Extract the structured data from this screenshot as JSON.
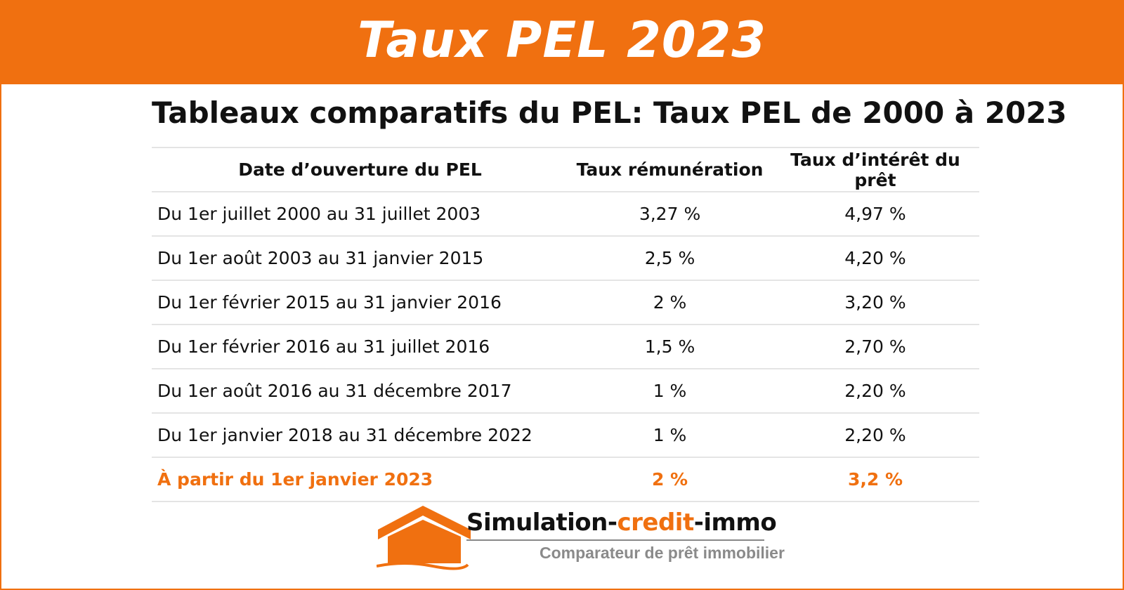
{
  "banner": {
    "title": "Taux PEL 2023"
  },
  "table": {
    "title": "Tableaux comparatifs du PEL: Taux PEL de 2000 à 2023",
    "headers": [
      "Date d’ouverture du PEL",
      "Taux rémunération",
      "Taux d’intérêt du prêt"
    ],
    "rows": [
      {
        "period": "Du 1er juillet 2000 au 31 juillet 2003",
        "remuneration": "3,27 %",
        "loan_rate": "4,97 %"
      },
      {
        "period": "Du 1er août 2003 au 31 janvier 2015",
        "remuneration": "2,5 %",
        "loan_rate": "4,20 %"
      },
      {
        "period": "Du 1er février 2015 au 31 janvier 2016",
        "remuneration": "2 %",
        "loan_rate": "3,20 %"
      },
      {
        "period": "Du 1er février 2016 au 31 juillet 2016",
        "remuneration": "1,5 %",
        "loan_rate": "2,70 %"
      },
      {
        "period": "Du 1er août 2016 au 31 décembre 2017",
        "remuneration": "1 %",
        "loan_rate": "2,20 %"
      },
      {
        "period": "Du 1er janvier 2018 au 31 décembre 2022",
        "remuneration": "1 %",
        "loan_rate": "2,20 %"
      },
      {
        "period": "À partir du 1er janvier 2023",
        "remuneration": "2 %",
        "loan_rate": "3,2 %"
      }
    ]
  },
  "logo": {
    "icon": "house-icon",
    "name_part1": "Simulation-",
    "name_part2": "credit",
    "name_part3": "-immo",
    "tagline": "Comparateur de prêt immobilier"
  },
  "colors": {
    "accent": "#f07010",
    "text": "#111111",
    "muted": "#8a8a8a",
    "rule": "#e4e4e4"
  }
}
